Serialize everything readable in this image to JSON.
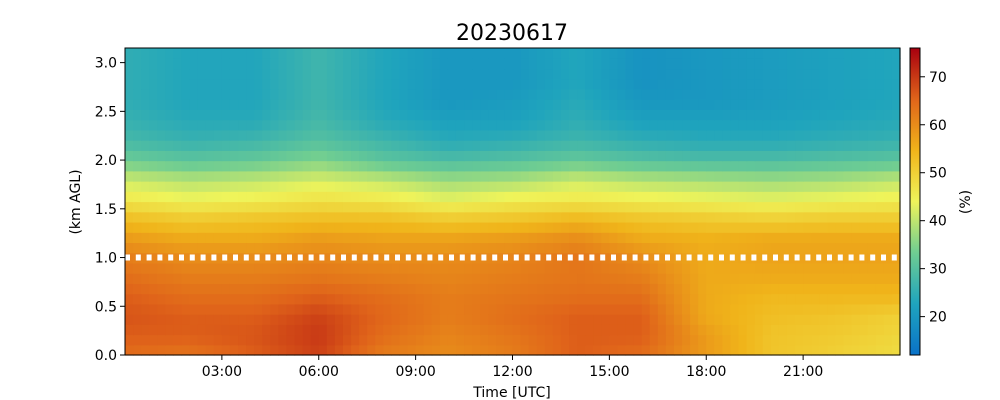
{
  "chart_data": {
    "type": "heatmap",
    "title": "20230617",
    "xlabel": "Time [UTC]",
    "ylabel": "(km AGL)",
    "colorbar_label": "(%)",
    "x_range_hours": [
      0,
      24
    ],
    "ylim": [
      0.0,
      3.15
    ],
    "x_ticks": [
      {
        "hour": 3,
        "label": "03:00"
      },
      {
        "hour": 6,
        "label": "06:00"
      },
      {
        "hour": 9,
        "label": "09:00"
      },
      {
        "hour": 12,
        "label": "12:00"
      },
      {
        "hour": 15,
        "label": "15:00"
      },
      {
        "hour": 18,
        "label": "18:00"
      },
      {
        "hour": 21,
        "label": "21:00"
      }
    ],
    "y_ticks": [
      {
        "value": 0.0,
        "label": "0.0"
      },
      {
        "value": 0.5,
        "label": "0.5"
      },
      {
        "value": 1.0,
        "label": "1.0"
      },
      {
        "value": 1.5,
        "label": "1.5"
      },
      {
        "value": 2.0,
        "label": "2.0"
      },
      {
        "value": 2.5,
        "label": "2.5"
      },
      {
        "value": 3.0,
        "label": "3.0"
      }
    ],
    "colorbar": {
      "vmin": 12,
      "vmax": 76,
      "colormap": [
        "#0a72c8",
        "#1fa4bd",
        "#6fcd92",
        "#eff45a",
        "#f0b41a",
        "#e0641a",
        "#a8000f"
      ],
      "ticks": [
        {
          "value": 20,
          "label": "20"
        },
        {
          "value": 30,
          "label": "30"
        },
        {
          "value": 40,
          "label": "40"
        },
        {
          "value": 50,
          "label": "50"
        },
        {
          "value": 60,
          "label": "60"
        },
        {
          "value": 70,
          "label": "70"
        }
      ]
    },
    "height_levels_km": [
      0.0,
      0.2,
      0.4,
      0.6,
      0.8,
      1.0,
      1.2,
      1.4,
      1.6,
      1.8,
      2.0,
      2.2,
      2.4,
      2.6,
      2.8,
      3.0
    ],
    "time_hours": [
      0,
      2,
      4,
      6,
      8,
      10,
      12,
      14,
      16,
      18,
      20,
      22,
      24
    ],
    "values_percent": [
      [
        64,
        63,
        66,
        69,
        62,
        60,
        62,
        66,
        64,
        58,
        52,
        50,
        48
      ],
      [
        66,
        66,
        67,
        70,
        64,
        61,
        63,
        66,
        66,
        58,
        52,
        51,
        49
      ],
      [
        67,
        66,
        66,
        69,
        65,
        62,
        64,
        66,
        66,
        56,
        53,
        52,
        50
      ],
      [
        66,
        64,
        64,
        66,
        64,
        62,
        63,
        64,
        64,
        56,
        54,
        54,
        54
      ],
      [
        64,
        62,
        62,
        63,
        62,
        61,
        62,
        63,
        62,
        56,
        56,
        56,
        56
      ],
      [
        62,
        60,
        60,
        61,
        60,
        60,
        61,
        63,
        60,
        56,
        57,
        57,
        57
      ],
      [
        58,
        56,
        56,
        58,
        57,
        57,
        58,
        60,
        56,
        55,
        56,
        56,
        56
      ],
      [
        53,
        51,
        52,
        53,
        53,
        51,
        52,
        54,
        52,
        51,
        50,
        51,
        51
      ],
      [
        46,
        44,
        45,
        47,
        46,
        43,
        45,
        46,
        45,
        44,
        43,
        44,
        45
      ],
      [
        41,
        39,
        40,
        42,
        40,
        37,
        38,
        41,
        39,
        38,
        37,
        38,
        40
      ],
      [
        33,
        31,
        32,
        35,
        31,
        29,
        30,
        32,
        30,
        29,
        29,
        30,
        31
      ],
      [
        28,
        26,
        27,
        30,
        27,
        24,
        25,
        27,
        25,
        24,
        24,
        25,
        26
      ],
      [
        26,
        24,
        24,
        28,
        24,
        22,
        22,
        25,
        22,
        22,
        22,
        23,
        24
      ],
      [
        25,
        23,
        23,
        27,
        23,
        20,
        21,
        24,
        20,
        20,
        21,
        22,
        23
      ],
      [
        25,
        23,
        23,
        27,
        23,
        20,
        20,
        23,
        19,
        20,
        21,
        22,
        23
      ],
      [
        25,
        23,
        23,
        27,
        23,
        20,
        20,
        23,
        19,
        20,
        21,
        22,
        23
      ]
    ],
    "reference_line": {
      "y": 1.0,
      "color": "#ffffff",
      "style": "dotted"
    }
  }
}
